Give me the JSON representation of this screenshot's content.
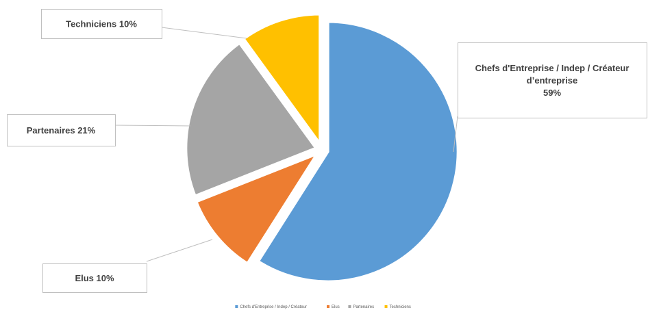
{
  "chart_data": {
    "type": "pie",
    "exploded": true,
    "start_angle_deg": 0,
    "direction": "clockwise",
    "slices": [
      {
        "name": "Chefs d'Entreprise / Indep / Créateur d’entreprise",
        "legend_label": "Chefs d'Entreprise / Indep / Créateur",
        "label_lines": [
          "Chefs d'Entreprise / Indep / Créateur",
          "d’entreprise",
          "59%"
        ],
        "value": 59,
        "color": "#5B9BD5"
      },
      {
        "name": "Elus",
        "legend_label": "Elus",
        "label_lines": [
          "Elus 10%"
        ],
        "value": 10,
        "color": "#ED7D31"
      },
      {
        "name": "Partenaires",
        "legend_label": "Partenaires",
        "label_lines": [
          "Partenaires 21%"
        ],
        "value": 21,
        "color": "#A5A5A5"
      },
      {
        "name": "Techniciens",
        "legend_label": "Techniciens",
        "label_lines": [
          "Techniciens 10%"
        ],
        "value": 10,
        "color": "#FFC000"
      }
    ],
    "legend_position": "bottom"
  }
}
